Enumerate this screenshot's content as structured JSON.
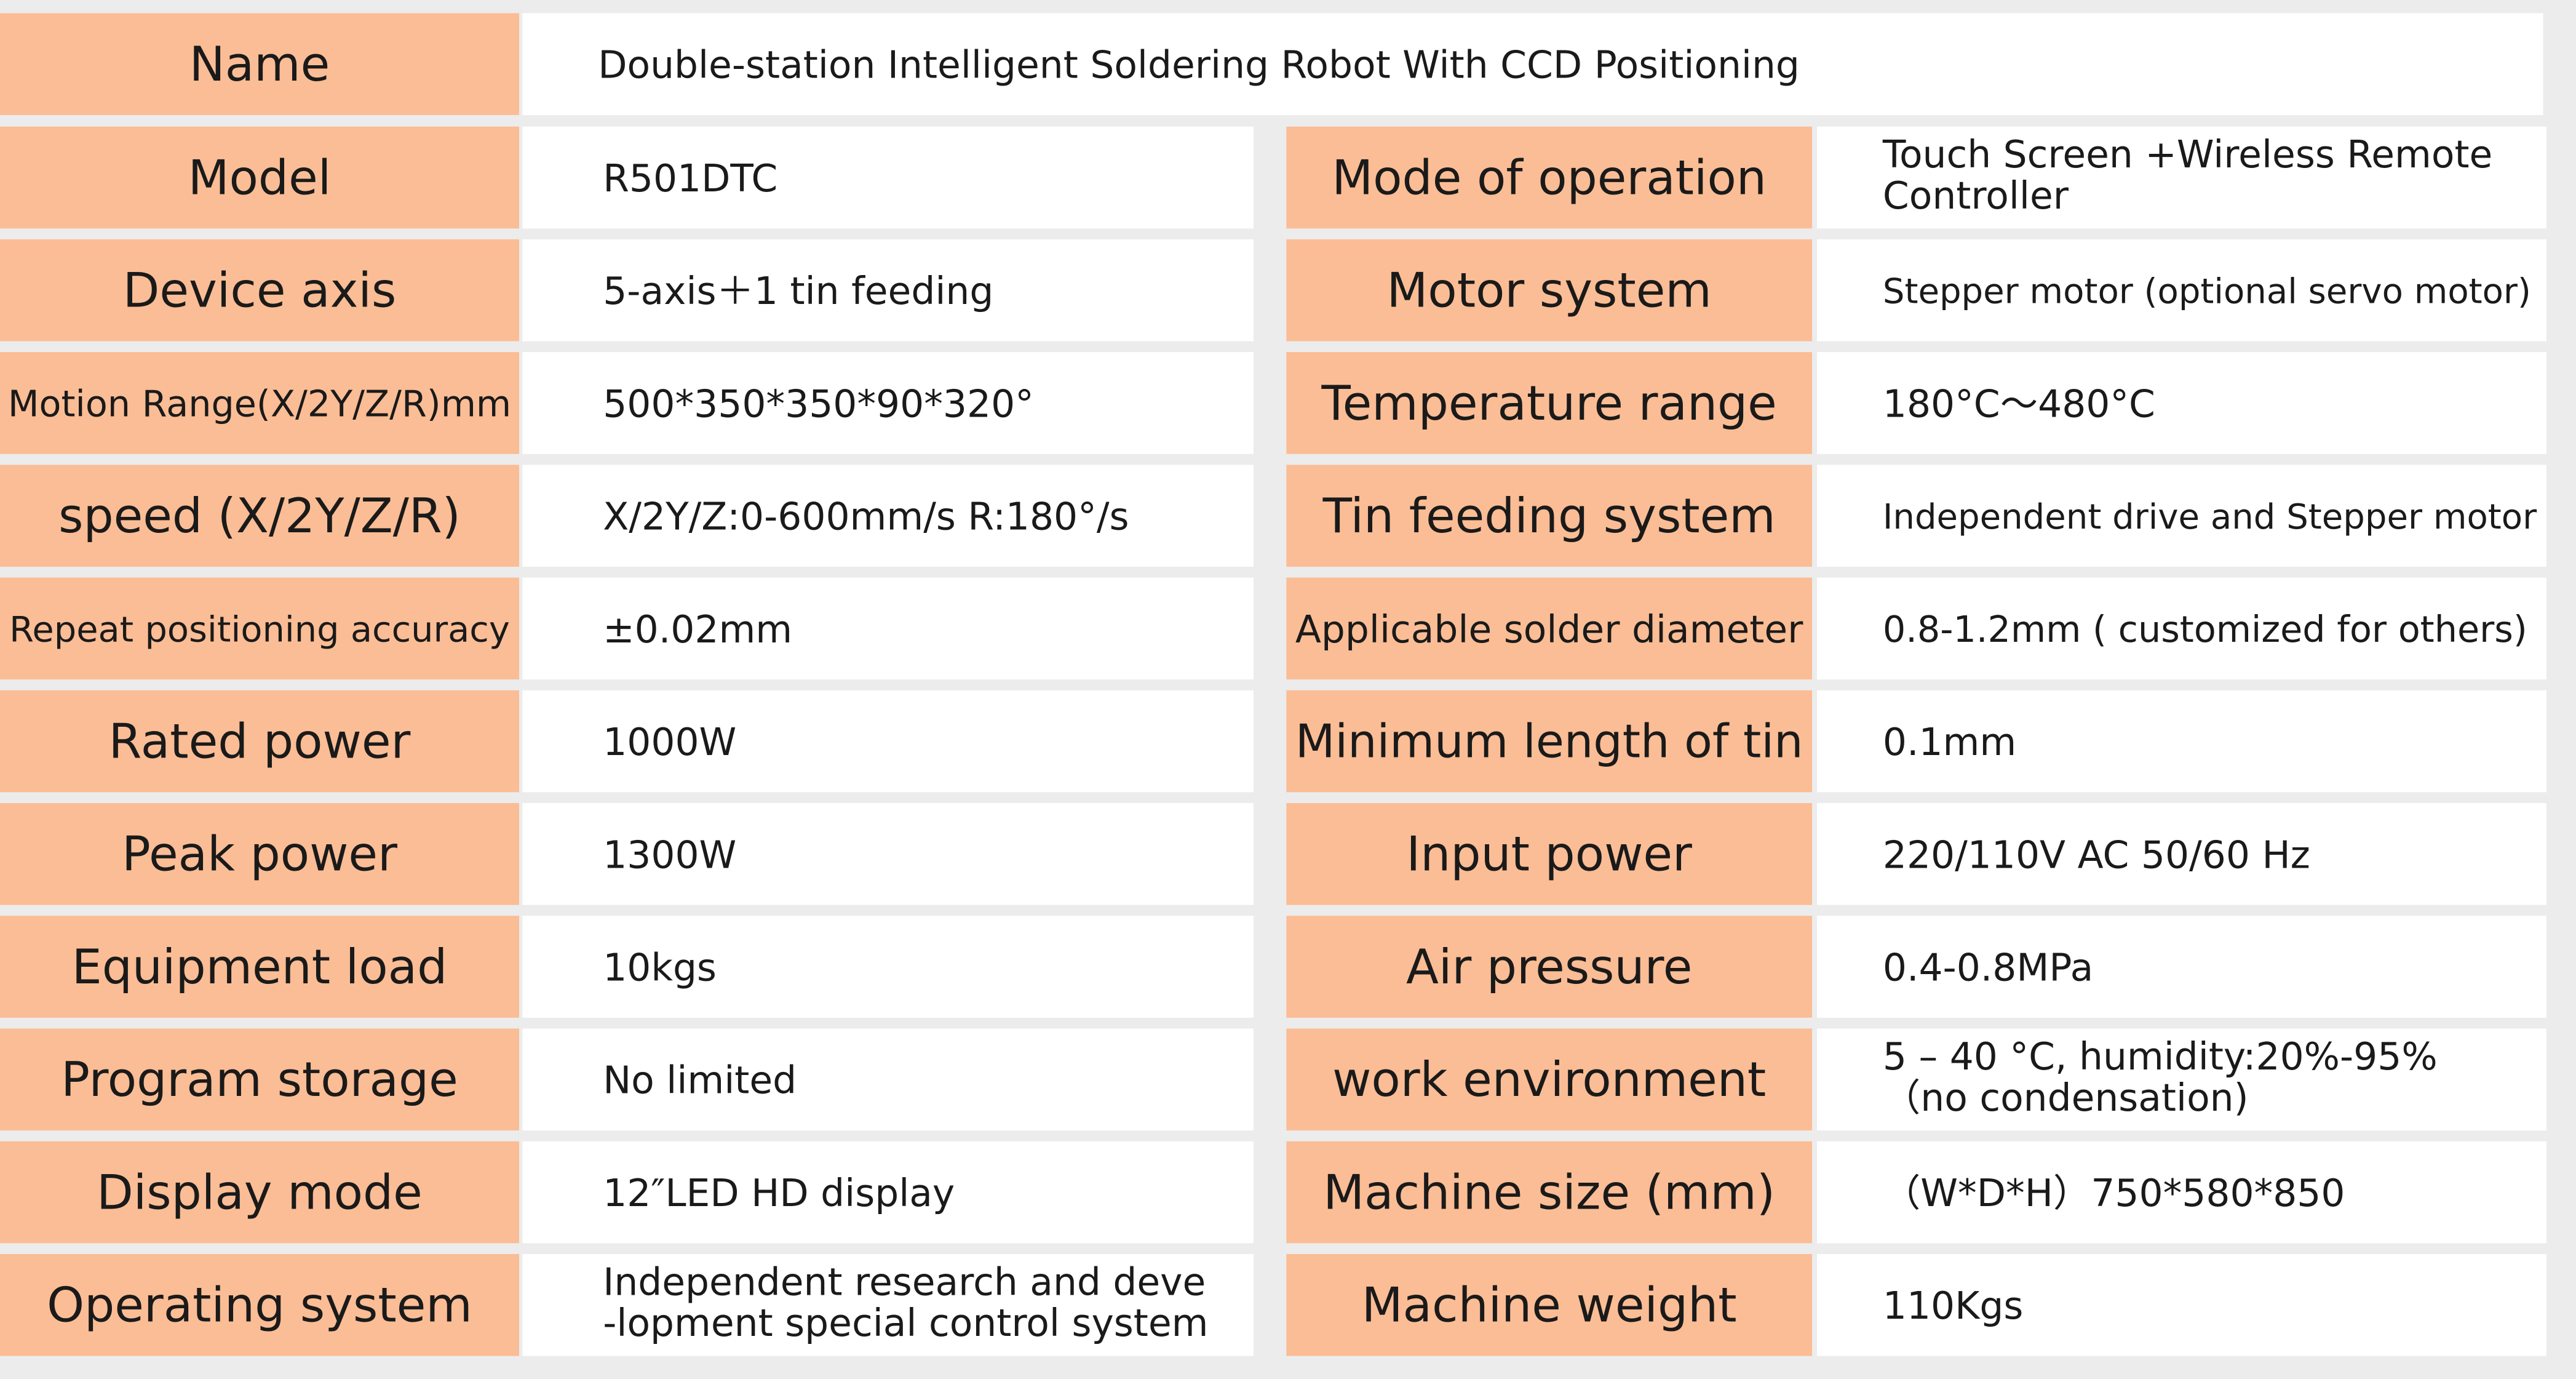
{
  "header": {
    "label": "Name",
    "value": "Double-station Intelligent Soldering Robot With CCD Positioning"
  },
  "rows": [
    {
      "left": {
        "label": "Model",
        "value": "R501DTC"
      },
      "right": {
        "label": "Mode of operation",
        "value": [
          "Touch Screen +Wireless Remote",
          "Controller"
        ]
      }
    },
    {
      "left": {
        "label": "Device axis",
        "value": "5-axis＋1 tin feeding"
      },
      "right": {
        "label": "Motor system",
        "value": "Stepper motor (optional servo motor)"
      }
    },
    {
      "left": {
        "label": "Motion Range(X/2Y/Z/R)mm",
        "value": "500*350*350*90*320°"
      },
      "right": {
        "label": "Temperature range",
        "value": "180°C～480°C"
      }
    },
    {
      "left": {
        "label": "speed (X/2Y/Z/R)",
        "value": "X/2Y/Z:0-600mm/s R:180°/s"
      },
      "right": {
        "label": "Tin feeding system",
        "value": "Independent drive and Stepper motor"
      }
    },
    {
      "left": {
        "label": "Repeat positioning accuracy",
        "value": "±0.02mm"
      },
      "right": {
        "label": "Applicable solder diameter",
        "value": "0.8-1.2mm ( customized for others)"
      }
    },
    {
      "left": {
        "label": "Rated power",
        "value": "1000W"
      },
      "right": {
        "label": "Minimum length of tin",
        "value": "0.1mm"
      }
    },
    {
      "left": {
        "label": "Peak power",
        "value": "1300W"
      },
      "right": {
        "label": "Input power",
        "value": "220/110V AC 50/60 Hz"
      }
    },
    {
      "left": {
        "label": "Equipment load",
        "value": "10kgs"
      },
      "right": {
        "label": "Air pressure",
        "value": "0.4-0.8MPa"
      }
    },
    {
      "left": {
        "label": "Program storage",
        "value": "No limited"
      },
      "right": {
        "label": "work environment",
        "value": [
          "5 – 40 °C, humidity:20%-95%",
          "（no condensation)"
        ]
      }
    },
    {
      "left": {
        "label": "Display mode",
        "value": "12″LED HD display"
      },
      "right": {
        "label": "Machine size (mm)",
        "value": "（W*D*H）750*580*850"
      }
    },
    {
      "left": {
        "label": "Operating system",
        "value": [
          "Independent research and deve",
          "-lopment special control system"
        ]
      },
      "right": {
        "label": "Machine weight",
        "value": "110Kgs"
      }
    }
  ]
}
